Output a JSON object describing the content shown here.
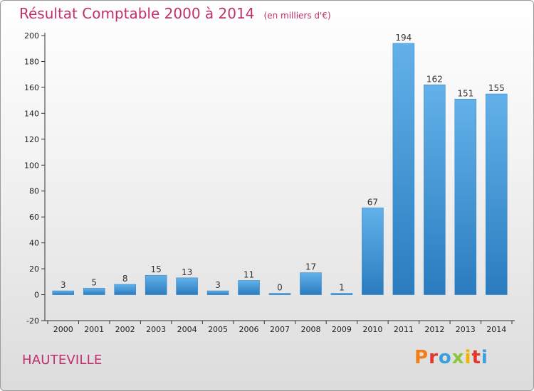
{
  "header": {
    "title": "Résultat Comptable 2000 à 2014",
    "unit": "(en milliers d'€)"
  },
  "footer": {
    "commune": "HAUTEVILLE",
    "logo_text": "Proxiti"
  },
  "colors": {
    "title": "#c0306a",
    "bar_top": "#62b1ea",
    "bar_bottom": "#2a7cbf",
    "logo_letters": [
      "#f07f1a",
      "#e5352c",
      "#3aa0dd",
      "#8cc63f",
      "#f0b400",
      "#e5352c",
      "#3aa0dd"
    ]
  },
  "chart_data": {
    "type": "bar",
    "title": "Résultat Comptable 2000 à 2014",
    "xlabel": "",
    "ylabel": "",
    "categories": [
      "2000",
      "2001",
      "2002",
      "2003",
      "2004",
      "2005",
      "2006",
      "2007",
      "2008",
      "2009",
      "2010",
      "2011",
      "2012",
      "2013",
      "2014"
    ],
    "values": [
      3,
      5,
      8,
      15,
      13,
      3,
      11,
      0,
      17,
      1,
      67,
      194,
      162,
      151,
      155
    ],
    "ylim": [
      -20,
      200
    ],
    "yticks": [
      -20,
      0,
      20,
      40,
      60,
      80,
      100,
      120,
      140,
      160,
      180,
      200
    ],
    "grid": false,
    "legend": "none"
  }
}
